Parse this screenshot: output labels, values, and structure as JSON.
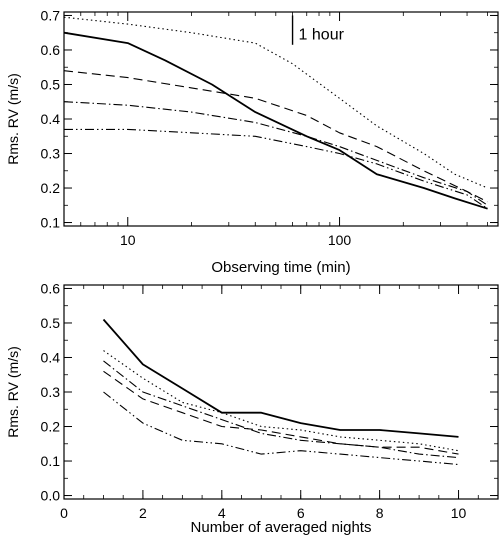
{
  "chart_data": [
    {
      "type": "line",
      "xscale": "log",
      "xlabel": "Observing time (min)",
      "ylabel": "Rms. RV (m/s)",
      "xlim": [
        5,
        560
      ],
      "ylim": [
        0.09,
        0.71
      ],
      "xticks": [
        10,
        100
      ],
      "xtick_labels": [
        "10",
        "100"
      ],
      "yticks": [
        0.1,
        0.2,
        0.3,
        0.4,
        0.5,
        0.6,
        0.7
      ],
      "ytick_labels": [
        "0.1",
        "0.2",
        "0.3",
        "0.4",
        "0.5",
        "0.6",
        "0.7"
      ],
      "annotation": "1 hour",
      "annotation_x": 60,
      "annotation_y": [
        0.615,
        0.7
      ],
      "grid": false,
      "series": [
        {
          "style": "solid",
          "x": [
            5,
            10,
            15,
            25,
            40,
            70,
            100,
            150,
            250,
            350,
            500
          ],
          "y": [
            0.65,
            0.62,
            0.57,
            0.5,
            0.42,
            0.35,
            0.31,
            0.24,
            0.2,
            0.17,
            0.14
          ]
        },
        {
          "style": "dotted",
          "x": [
            5,
            10,
            20,
            40,
            60,
            100,
            150,
            250,
            350,
            500
          ],
          "y": [
            0.695,
            0.675,
            0.65,
            0.62,
            0.56,
            0.46,
            0.38,
            0.3,
            0.24,
            0.2
          ]
        },
        {
          "style": "dashed",
          "x": [
            5,
            10,
            20,
            40,
            70,
            100,
            150,
            250,
            400,
            500
          ],
          "y": [
            0.54,
            0.52,
            0.49,
            0.46,
            0.41,
            0.36,
            0.32,
            0.25,
            0.19,
            0.16
          ]
        },
        {
          "style": "dashdot",
          "x": [
            5,
            10,
            20,
            40,
            70,
            100,
            150,
            250,
            400,
            500
          ],
          "y": [
            0.45,
            0.44,
            0.42,
            0.39,
            0.35,
            0.32,
            0.28,
            0.23,
            0.19,
            0.15
          ]
        },
        {
          "style": "dashdotdot",
          "x": [
            5,
            10,
            20,
            40,
            70,
            100,
            150,
            250,
            400,
            500
          ],
          "y": [
            0.37,
            0.37,
            0.36,
            0.35,
            0.32,
            0.3,
            0.27,
            0.22,
            0.18,
            0.14
          ]
        }
      ]
    },
    {
      "type": "line",
      "xlabel": "Number of averaged nights",
      "ylabel": "Rms. RV (m/s)",
      "xlim": [
        0,
        11
      ],
      "ylim": [
        -0.01,
        0.61
      ],
      "xticks": [
        0,
        2,
        4,
        6,
        8,
        10
      ],
      "xtick_labels": [
        "0",
        "2",
        "4",
        "6",
        "8",
        "10"
      ],
      "yticks": [
        0.0,
        0.1,
        0.2,
        0.3,
        0.4,
        0.5,
        0.6
      ],
      "ytick_labels": [
        "0.0",
        "0.1",
        "0.2",
        "0.3",
        "0.4",
        "0.5",
        "0.6"
      ],
      "grid": false,
      "series": [
        {
          "style": "solid",
          "x": [
            1,
            2,
            3,
            4,
            5,
            6,
            7,
            8,
            9,
            10
          ],
          "y": [
            0.51,
            0.38,
            0.31,
            0.24,
            0.24,
            0.21,
            0.19,
            0.19,
            0.18,
            0.17
          ]
        },
        {
          "style": "dotted",
          "x": [
            1,
            2,
            3,
            4,
            5,
            6,
            7,
            8,
            9,
            10
          ],
          "y": [
            0.42,
            0.34,
            0.27,
            0.24,
            0.2,
            0.19,
            0.17,
            0.16,
            0.15,
            0.13
          ]
        },
        {
          "style": "dashed",
          "x": [
            1,
            2,
            3,
            4,
            5,
            6,
            7,
            8,
            9,
            10
          ],
          "y": [
            0.36,
            0.28,
            0.24,
            0.2,
            0.19,
            0.17,
            0.15,
            0.14,
            0.14,
            0.12
          ]
        },
        {
          "style": "dashdot",
          "x": [
            1,
            2,
            3,
            4,
            5,
            6,
            7,
            8,
            9,
            10
          ],
          "y": [
            0.39,
            0.3,
            0.26,
            0.22,
            0.18,
            0.16,
            0.15,
            0.14,
            0.12,
            0.11
          ]
        },
        {
          "style": "dashdotdot",
          "x": [
            1,
            2,
            3,
            4,
            5,
            6,
            7,
            8,
            9,
            10
          ],
          "y": [
            0.3,
            0.21,
            0.16,
            0.15,
            0.12,
            0.13,
            0.12,
            0.11,
            0.1,
            0.09
          ]
        }
      ]
    }
  ]
}
